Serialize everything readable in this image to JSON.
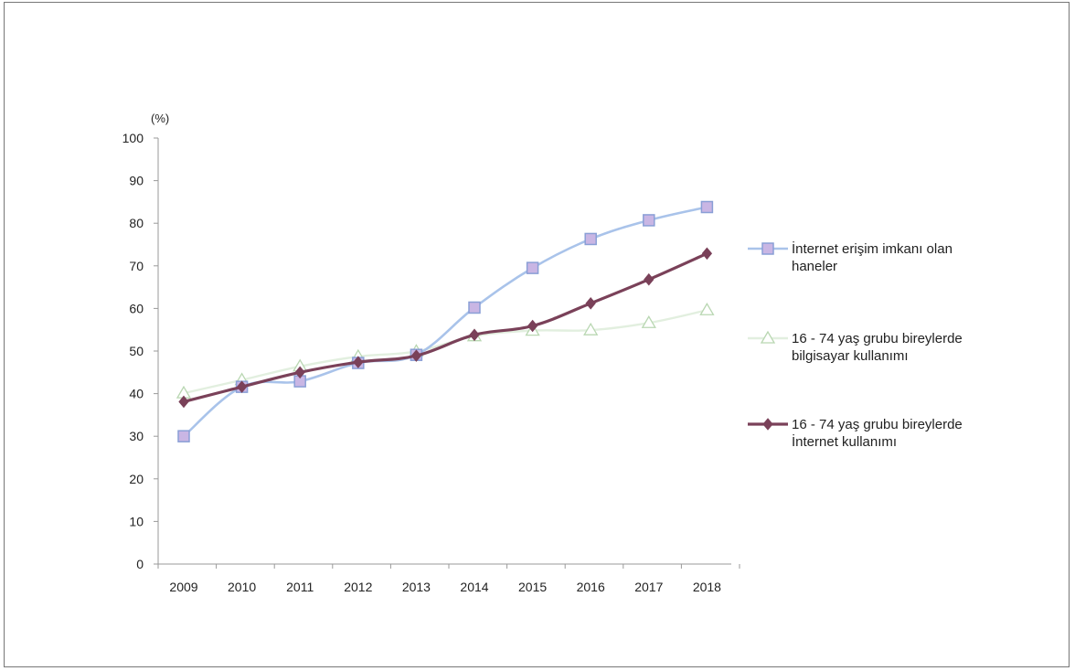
{
  "chart_data": {
    "type": "line",
    "ylabel": "(%)",
    "xlabel": "",
    "title": "",
    "ylim": [
      0,
      100
    ],
    "yticks": [
      0,
      10,
      20,
      30,
      40,
      50,
      60,
      70,
      80,
      90,
      100
    ],
    "categories": [
      "2009",
      "2010",
      "2011",
      "2012",
      "2013",
      "2014",
      "2015",
      "2016",
      "2017",
      "2018"
    ],
    "grid": false,
    "legend_position": "right",
    "series": [
      {
        "name": "İnternet erişim imkanı olan haneler",
        "legend_lines": [
          "İnternet erişim imkanı olan",
          "haneler"
        ],
        "color": "#a9c3ea",
        "marker": "square",
        "marker_fill": "#c9b6e4",
        "values": [
          30.0,
          41.6,
          42.9,
          47.2,
          49.1,
          60.2,
          69.5,
          76.3,
          80.7,
          83.8
        ]
      },
      {
        "name": "16 - 74 yaş grubu bireylerde bilgisayar kullanımı",
        "legend_lines": [
          "16 - 74 yaş grubu bireylerde",
          "bilgisayar kullanımı"
        ],
        "color": "#e2efdf",
        "marker": "triangle",
        "marker_fill": "#ffffff",
        "values": [
          40.1,
          43.2,
          46.4,
          48.7,
          49.9,
          53.5,
          54.8,
          54.9,
          56.6,
          59.6
        ]
      },
      {
        "name": "16 - 74 yaş grubu bireylerde İnternet kullanımı",
        "legend_lines": [
          "16 - 74 yaş grubu bireylerde",
          "İnternet kullanımı"
        ],
        "color": "#7a4159",
        "marker": "diamond",
        "marker_fill": "#7a4159",
        "values": [
          38.1,
          41.6,
          45.0,
          47.4,
          48.9,
          53.8,
          55.9,
          61.2,
          66.8,
          72.9
        ]
      }
    ]
  }
}
